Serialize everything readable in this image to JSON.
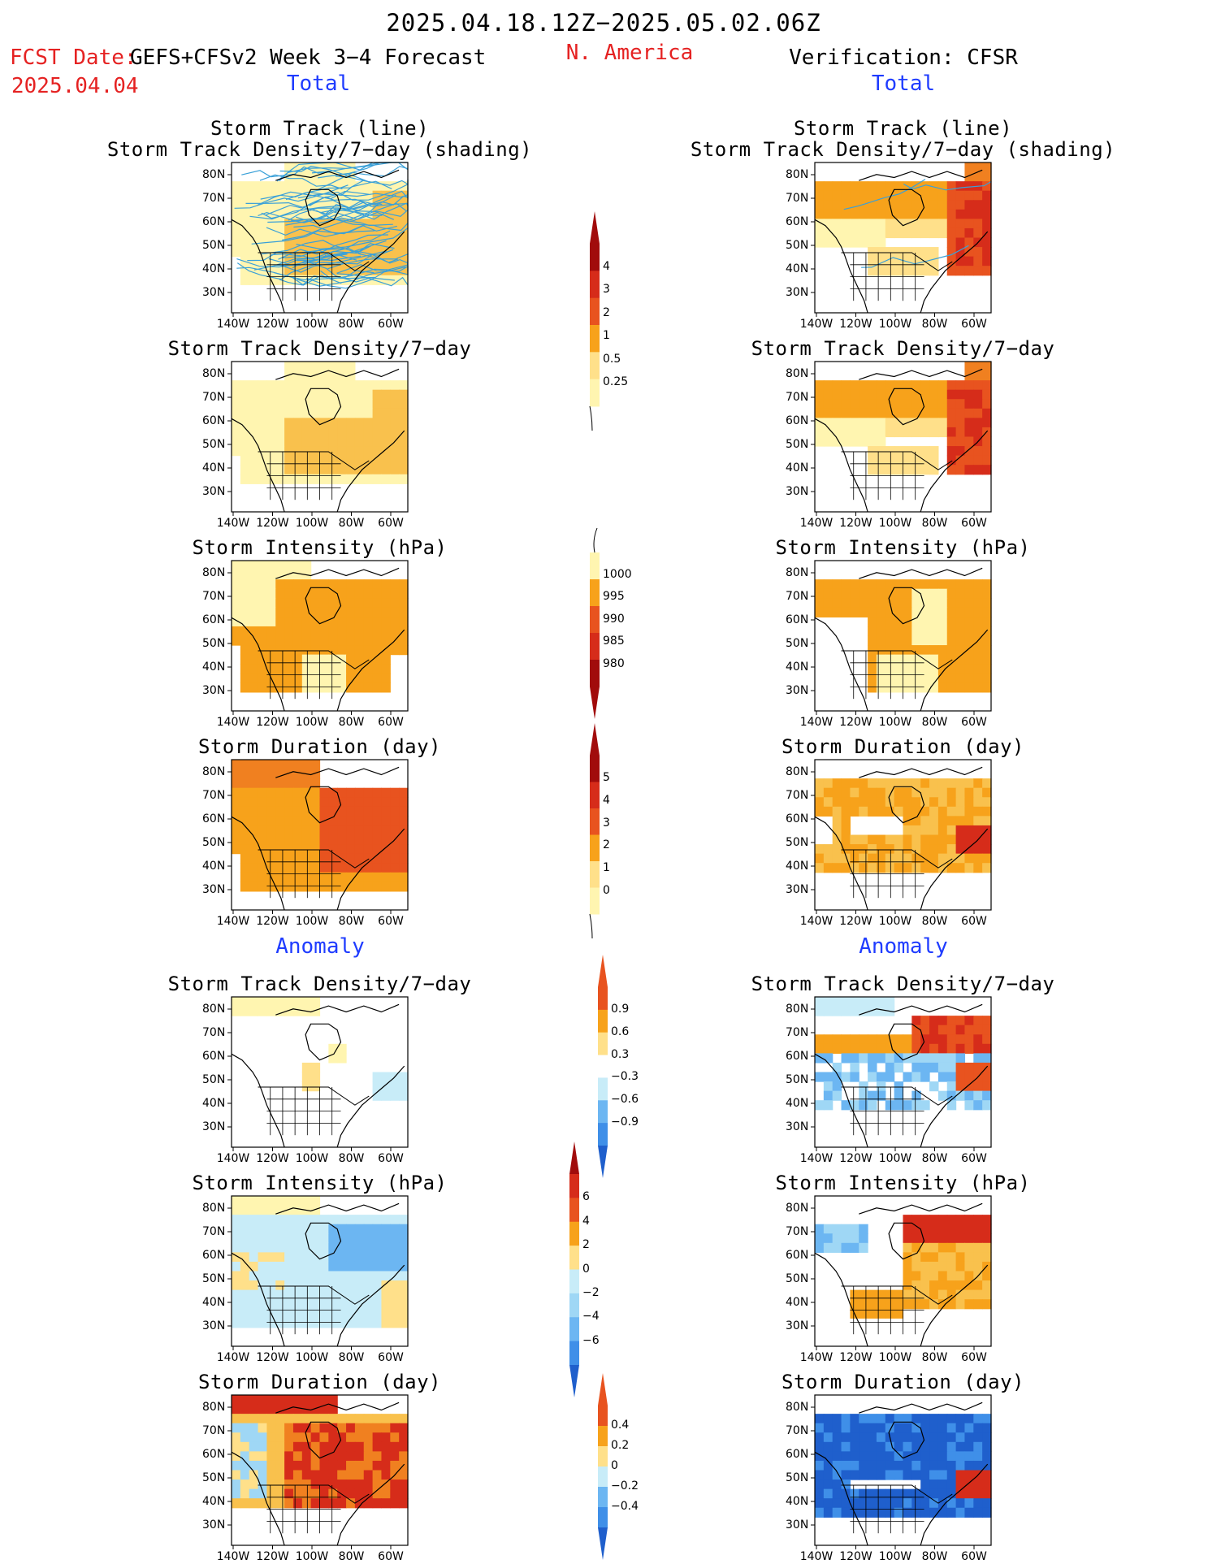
{
  "header": {
    "period": "2025.04.18.12Z−2025.05.02.06Z",
    "fcst_date_label": "FCST Date:",
    "fcst_date": "2025.04.04",
    "left_title": "GEFS+CFSv2 Week 3−4 Forecast",
    "region": "N. America",
    "right_title": "Verification: CFSR"
  },
  "sections": {
    "total": "Total",
    "anomaly": "Anomaly"
  },
  "panel_titles": {
    "storm_track_line": "Storm Track (line)",
    "storm_track_shading": "Storm Track Density/7−day (shading)",
    "density": "Storm Track Density/7−day",
    "intensity": "Storm Intensity (hPa)",
    "duration": "Storm Duration (day)"
  },
  "axes": {
    "lat_labels": [
      "80N",
      "70N",
      "60N",
      "50N",
      "40N",
      "30N"
    ],
    "lon_labels": [
      "140W",
      "120W",
      "100W",
      "80W",
      "60W"
    ]
  },
  "colorbars": {
    "density_total": [
      "4",
      "3",
      "2",
      "1",
      "0.5",
      "0.25"
    ],
    "intensity_total": [
      "1000",
      "995",
      "990",
      "985",
      "980"
    ],
    "duration_total": [
      "5",
      "4",
      "3",
      "2",
      "1",
      "0"
    ],
    "density_anom": [
      "0.9",
      "0.6",
      "0.3",
      "−0.3",
      "−0.6",
      "−0.9"
    ],
    "intensity_anom": [
      "6",
      "4",
      "2",
      "0",
      "−2",
      "−4",
      "−6"
    ],
    "duration_anom": [
      "0.4",
      "0.2",
      "0",
      "−0.2",
      "−0.4"
    ]
  },
  "colors": {
    "warm": [
      "#fff5b0",
      "#ffe08a",
      "#f9c14d",
      "#f7a21b",
      "#f08020",
      "#e8531f",
      "#d62c1a",
      "#a10c0c"
    ],
    "cool": [
      "#c8ecf8",
      "#9fd7f5",
      "#6cb6f2",
      "#3f8fe8",
      "#1f5fcc"
    ],
    "track_line": "#3aa0d8",
    "red_text": "#e52222",
    "blue_text": "#1f3cff"
  }
}
